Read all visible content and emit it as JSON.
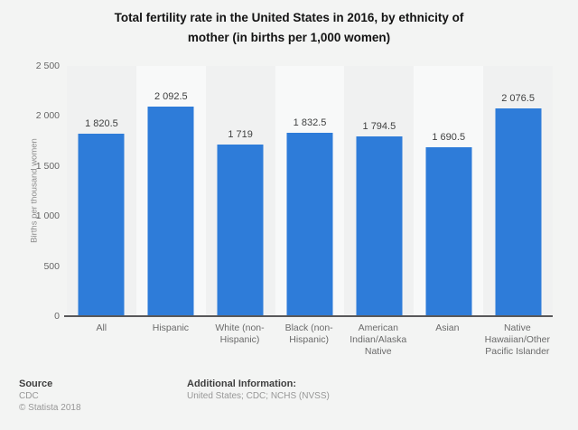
{
  "title": {
    "line1": "Total fertility rate in the United States in 2016, by ethnicity of",
    "line2": "mother (in births per 1,000 women)"
  },
  "chart_data": {
    "type": "bar",
    "title": "Total fertility rate in the United States in 2016, by ethnicity of mother (in births per 1,000 women)",
    "categories": [
      "All",
      "Hispanic",
      "White (non-Hispanic)",
      "Black (non-Hispanic)",
      "American Indian/Alaska Native",
      "Asian",
      "Native Hawaiian/Other Pacific Islander"
    ],
    "values": [
      1820.5,
      2092.5,
      1719,
      1832.5,
      1794.5,
      1690.5,
      2076.5
    ],
    "value_labels": [
      "1 820.5",
      "2 092.5",
      "1 719",
      "1 832.5",
      "1 794.5",
      "1 690.5",
      "2 076.5"
    ],
    "xlabel": "",
    "ylabel": "Births per thousand women",
    "ylim": [
      0,
      2500
    ],
    "yticks": [
      0,
      500,
      1000,
      1500,
      2000,
      2500
    ],
    "ytick_labels": [
      "0",
      "500",
      "1 000",
      "1 500",
      "2 000",
      "2 500"
    ],
    "grid": "horizontal-dashed",
    "legend": "none"
  },
  "footer": {
    "source_label": "Source",
    "source_value": "CDC",
    "copyright": "© Statista 2018",
    "additional_label": "Additional Information:",
    "additional_value": "United States; CDC; NCHS (NVSS)"
  },
  "colors": {
    "bar": "#2e7cd9",
    "background": "#f3f4f3",
    "band_dark": "#f0f1f1",
    "band_light": "#f8f9f9",
    "grid": "#d9dadb",
    "axis_line": "#58585a",
    "title_text": "#131313",
    "label_text": "#6a6a6a"
  }
}
